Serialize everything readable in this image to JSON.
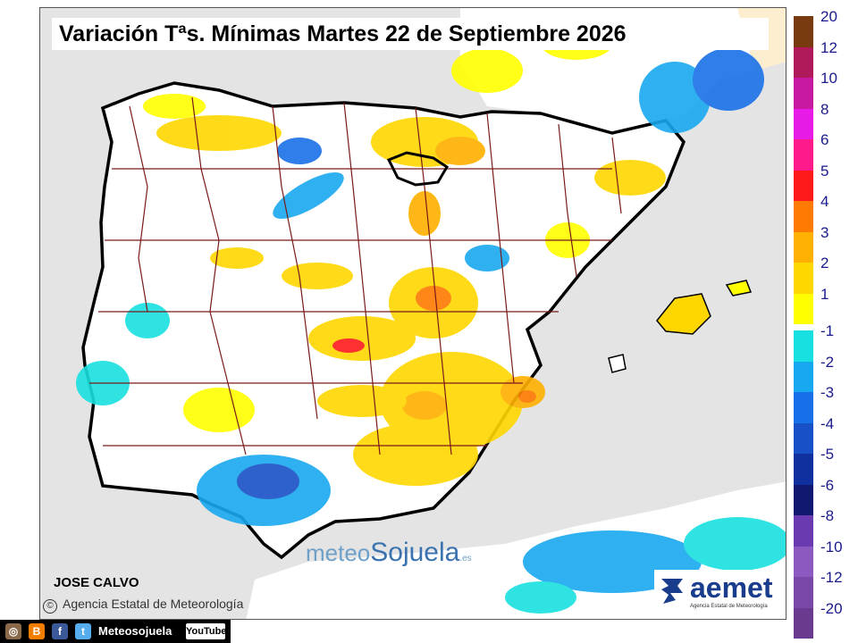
{
  "title": "Variación Tªs. Mínimas Martes 22 de Septiembre 2026",
  "author": "JOSE CALVO",
  "credit": "Agencia Estatal de Meteorología",
  "credit_symbol": "©",
  "brand": {
    "part1": "meteo",
    "part2": "Sojuela",
    "suffix": ".es"
  },
  "aemet": {
    "name": "aemet",
    "subtitle": "Agencia Estatal de Meteorología"
  },
  "social": {
    "handle": "Meteosojuela",
    "youtube": "YouTube",
    "icons": [
      "instagram-icon",
      "blogger-icon",
      "facebook-icon",
      "twitter-icon"
    ]
  },
  "legend": {
    "positive": [
      {
        "label": "20",
        "color": "#7a3a10"
      },
      {
        "label": "12",
        "color": "#b01a5a"
      },
      {
        "label": "10",
        "color": "#c81aa0"
      },
      {
        "label": "8",
        "color": "#e81ae8"
      },
      {
        "label": "6",
        "color": "#ff1a8c"
      },
      {
        "label": "5",
        "color": "#ff1a1a"
      },
      {
        "label": "4",
        "color": "#ff7a00"
      },
      {
        "label": "3",
        "color": "#ffb000"
      },
      {
        "label": "2",
        "color": "#ffd700"
      },
      {
        "label": "1",
        "color": "#ffff00"
      }
    ],
    "negative": [
      {
        "label": "-1",
        "color": "#18e0e0"
      },
      {
        "label": "-2",
        "color": "#18a8f0"
      },
      {
        "label": "-3",
        "color": "#1870e8"
      },
      {
        "label": "-4",
        "color": "#1850c8"
      },
      {
        "label": "-5",
        "color": "#1030a0"
      },
      {
        "label": "-6",
        "color": "#101870"
      },
      {
        "label": "-8",
        "color": "#6a3ab0"
      },
      {
        "label": "-10",
        "color": "#8a5ac0"
      },
      {
        "label": "-12",
        "color": "#7a48a8"
      },
      {
        "label": "-20",
        "color": "#6a3a90"
      }
    ]
  },
  "colors": {
    "sea": "#e4e4e4",
    "land": "#ffffff",
    "border": "#000000",
    "region_lines": "#7a1a1a"
  }
}
